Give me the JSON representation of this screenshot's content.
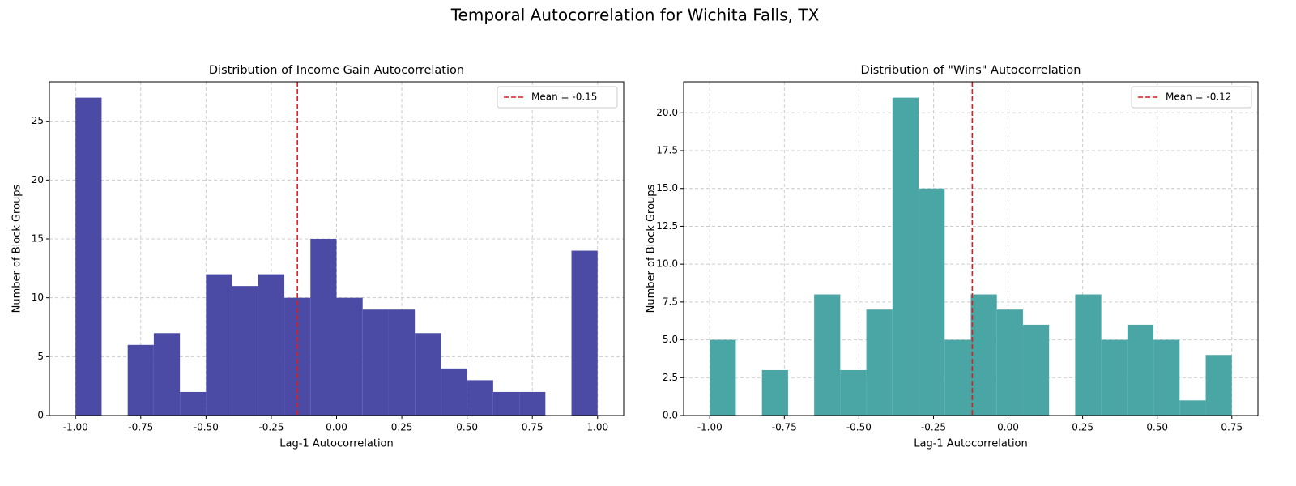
{
  "title": "Temporal Autocorrelation for Wichita Falls, TX",
  "chart_data": [
    {
      "type": "histogram",
      "title": "Distribution of Income Gain Autocorrelation",
      "xlabel": "Lag-1 Autocorrelation",
      "ylabel": "Number of Block Groups",
      "bins": [
        -1.0,
        -0.9,
        -0.8,
        -0.7,
        -0.6,
        -0.5,
        -0.4,
        -0.3,
        -0.2,
        -0.1,
        0.0,
        0.1,
        0.2,
        0.3,
        0.4,
        0.5,
        0.6,
        0.7,
        0.8,
        0.9,
        1.0
      ],
      "counts": [
        27,
        0,
        6,
        7,
        2,
        12,
        11,
        12,
        10,
        15,
        10,
        9,
        9,
        7,
        4,
        3,
        2,
        2,
        0,
        14
      ],
      "color": "#4b4ba6",
      "xlim": [
        -1.1,
        1.1
      ],
      "ylim": [
        0,
        28.35
      ],
      "xticks": [
        {
          "value": -1,
          "label": "-1.00"
        },
        {
          "value": -0.75,
          "label": "-0.75"
        },
        {
          "value": -0.5,
          "label": "-0.50"
        },
        {
          "value": -0.25,
          "label": "-0.25"
        },
        {
          "value": 0,
          "label": "0.00"
        },
        {
          "value": 0.25,
          "label": "0.25"
        },
        {
          "value": 0.5,
          "label": "0.50"
        },
        {
          "value": 0.75,
          "label": "0.75"
        },
        {
          "value": 1,
          "label": "1.00"
        }
      ],
      "yticks": [
        0,
        5,
        10,
        15,
        20,
        25
      ],
      "grid": true,
      "mean": -0.15,
      "mean_label": "Mean = -0.15",
      "mean_color": "#e41a1c",
      "legend": "upper right"
    },
    {
      "type": "histogram",
      "title": "Distribution of \"Wins\" Autocorrelation",
      "xlabel": "Lag-1 Autocorrelation",
      "ylabel": "Number of Block Groups",
      "bins": [
        -1.0,
        -0.9125,
        -0.825,
        -0.7375,
        -0.65,
        -0.5625,
        -0.475,
        -0.3875,
        -0.3,
        -0.2125,
        -0.125,
        -0.0375,
        0.05,
        0.1375,
        0.225,
        0.3125,
        0.4,
        0.4875,
        0.575,
        0.6625,
        0.75
      ],
      "counts": [
        5,
        0,
        3,
        0,
        8,
        3,
        7,
        21,
        15,
        5,
        8,
        7,
        6,
        0,
        8,
        5,
        6,
        5,
        1,
        4
      ],
      "color": "#4aa5a5",
      "xlim": [
        -1.0875,
        0.8375
      ],
      "ylim": [
        0,
        22.05
      ],
      "xticks": [
        {
          "value": -1,
          "label": "-1.00"
        },
        {
          "value": -0.75,
          "label": "-0.75"
        },
        {
          "value": -0.5,
          "label": "-0.50"
        },
        {
          "value": -0.25,
          "label": "-0.25"
        },
        {
          "value": 0,
          "label": "0.00"
        },
        {
          "value": 0.25,
          "label": "0.25"
        },
        {
          "value": 0.5,
          "label": "0.50"
        },
        {
          "value": 0.75,
          "label": "0.75"
        }
      ],
      "yticks": [
        {
          "value": 0,
          "label": "0.0"
        },
        {
          "value": 2.5,
          "label": "2.5"
        },
        {
          "value": 5,
          "label": "5.0"
        },
        {
          "value": 7.5,
          "label": "7.5"
        },
        {
          "value": 10,
          "label": "10.0"
        },
        {
          "value": 12.5,
          "label": "12.5"
        },
        {
          "value": 15,
          "label": "15.0"
        },
        {
          "value": 17.5,
          "label": "17.5"
        },
        {
          "value": 20,
          "label": "20.0"
        }
      ],
      "grid": true,
      "mean": -0.12,
      "mean_label": "Mean = -0.12",
      "mean_color": "#e41a1c",
      "legend": "upper right"
    }
  ]
}
